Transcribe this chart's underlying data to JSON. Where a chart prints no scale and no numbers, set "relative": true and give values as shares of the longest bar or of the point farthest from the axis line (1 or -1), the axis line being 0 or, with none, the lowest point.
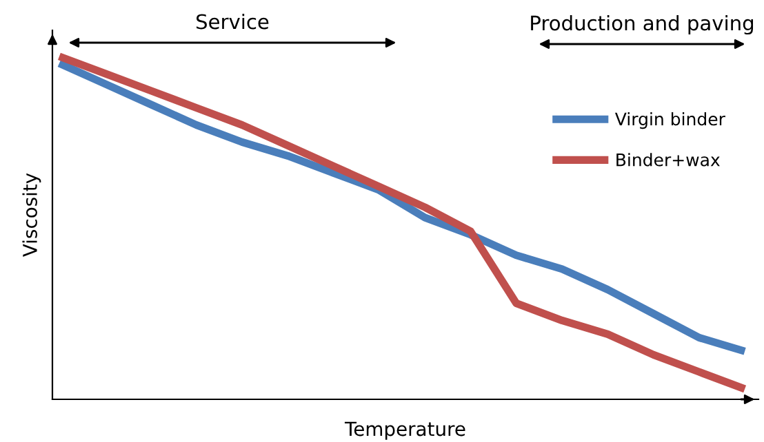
{
  "chart_data": {
    "type": "line",
    "relative": true,
    "xlabel": "Temperature",
    "ylabel": "Viscosity",
    "categories": [
      null,
      null,
      null,
      null,
      null,
      null,
      null,
      null,
      null,
      null,
      null,
      null,
      null,
      null,
      null,
      null
    ],
    "series": [
      {
        "name": "Virgin binder",
        "color": "#4a7ebb",
        "values": [
          0.98,
          0.92,
          0.86,
          0.8,
          0.75,
          0.71,
          0.66,
          0.61,
          0.53,
          0.48,
          0.42,
          0.38,
          0.32,
          0.25,
          0.18,
          0.14
        ]
      },
      {
        "name": "Binder+wax",
        "color": "#c0504d",
        "values": [
          1.0,
          0.95,
          0.9,
          0.85,
          0.8,
          0.74,
          0.68,
          0.62,
          0.56,
          0.49,
          0.28,
          0.23,
          0.19,
          0.13,
          0.08,
          0.03
        ]
      }
    ],
    "annotations": [
      "Service",
      "Production and paving"
    ],
    "legend": "top right",
    "grid": false,
    "marker": "none",
    "line_style": "solid"
  }
}
